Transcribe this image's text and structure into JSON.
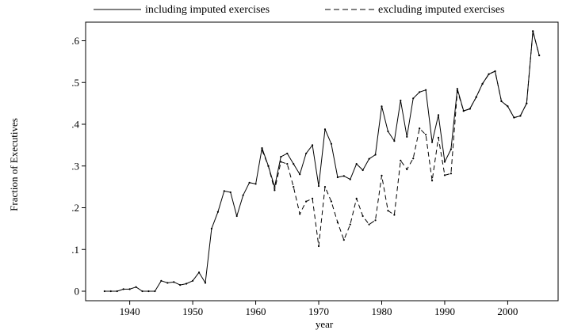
{
  "chart_data": {
    "type": "line",
    "title": "",
    "xlabel": "year",
    "ylabel": "Fraction of Executives",
    "xlim": [
      1933,
      2008
    ],
    "ylim": [
      0,
      0.62
    ],
    "x_ticks": [
      1940,
      1950,
      1960,
      1970,
      1980,
      1990,
      2000
    ],
    "x_tick_labels": [
      "1940",
      "1950",
      "1960",
      "1970",
      "1980",
      "1990",
      "2000"
    ],
    "y_ticks": [
      0,
      0.1,
      0.2,
      0.3,
      0.4,
      0.5,
      0.6
    ],
    "y_tick_labels": [
      "0",
      ".1",
      ".2",
      ".3",
      ".4",
      ".5",
      ".6"
    ],
    "legend_position": "top",
    "grid": false,
    "series": [
      {
        "name": "including imputed exercises",
        "style": "solid",
        "x": [
          1936,
          1937,
          1938,
          1939,
          1940,
          1941,
          1942,
          1943,
          1944,
          1945,
          1946,
          1947,
          1948,
          1949,
          1950,
          1951,
          1952,
          1953,
          1954,
          1955,
          1956,
          1957,
          1958,
          1959,
          1960,
          1961,
          1962,
          1963,
          1964,
          1965,
          1966,
          1967,
          1968,
          1969,
          1970,
          1971,
          1972,
          1973,
          1974,
          1975,
          1976,
          1977,
          1978,
          1979,
          1980,
          1981,
          1982,
          1983,
          1984,
          1985,
          1986,
          1987,
          1988,
          1989,
          1990,
          1991,
          1992,
          1993,
          1994,
          1995,
          1996,
          1997,
          1998,
          1999,
          2000,
          2001,
          2002,
          2003,
          2004,
          2005
        ],
        "values": [
          0,
          0,
          0,
          0.005,
          0.005,
          0.01,
          0,
          0,
          0,
          0.025,
          0.02,
          0.022,
          0.015,
          0.018,
          0.025,
          0.045,
          0.02,
          0.15,
          0.19,
          0.24,
          0.237,
          0.18,
          0.23,
          0.26,
          0.257,
          0.343,
          0.3,
          0.25,
          0.322,
          0.33,
          0.305,
          0.28,
          0.33,
          0.35,
          0.252,
          0.388,
          0.353,
          0.273,
          0.276,
          0.268,
          0.305,
          0.29,
          0.317,
          0.327,
          0.443,
          0.383,
          0.36,
          0.457,
          0.37,
          0.462,
          0.477,
          0.482,
          0.357,
          0.422,
          0.31,
          0.34,
          0.485,
          0.432,
          0.437,
          0.465,
          0.497,
          0.52,
          0.527,
          0.455,
          0.443,
          0.416,
          0.42,
          0.45,
          0.623,
          0.565
        ]
      },
      {
        "name": "excluding imputed exercises",
        "style": "dashed",
        "x": [
          1961,
          1962,
          1963,
          1964,
          1965,
          1966,
          1967,
          1968,
          1969,
          1970,
          1971,
          1972,
          1973,
          1974,
          1975,
          1976,
          1977,
          1978,
          1979,
          1980,
          1981,
          1982,
          1983,
          1984,
          1985,
          1986,
          1987,
          1988,
          1989,
          1990,
          1991,
          1992,
          1993,
          1994,
          1995,
          1996,
          1997,
          1998,
          1999,
          2000,
          2001,
          2002,
          2003,
          2004,
          2005
        ],
        "values": [
          0.338,
          0.3,
          0.242,
          0.31,
          0.305,
          0.25,
          0.185,
          0.215,
          0.222,
          0.108,
          0.25,
          0.215,
          0.165,
          0.123,
          0.16,
          0.222,
          0.18,
          0.16,
          0.17,
          0.277,
          0.193,
          0.183,
          0.313,
          0.292,
          0.318,
          0.39,
          0.375,
          0.265,
          0.368,
          0.278,
          0.282,
          0.48,
          0.432,
          0.437,
          0.465,
          0.497,
          0.52,
          0.527,
          0.455,
          0.443,
          0.416,
          0.42,
          0.45,
          0.623,
          0.565
        ]
      }
    ]
  }
}
